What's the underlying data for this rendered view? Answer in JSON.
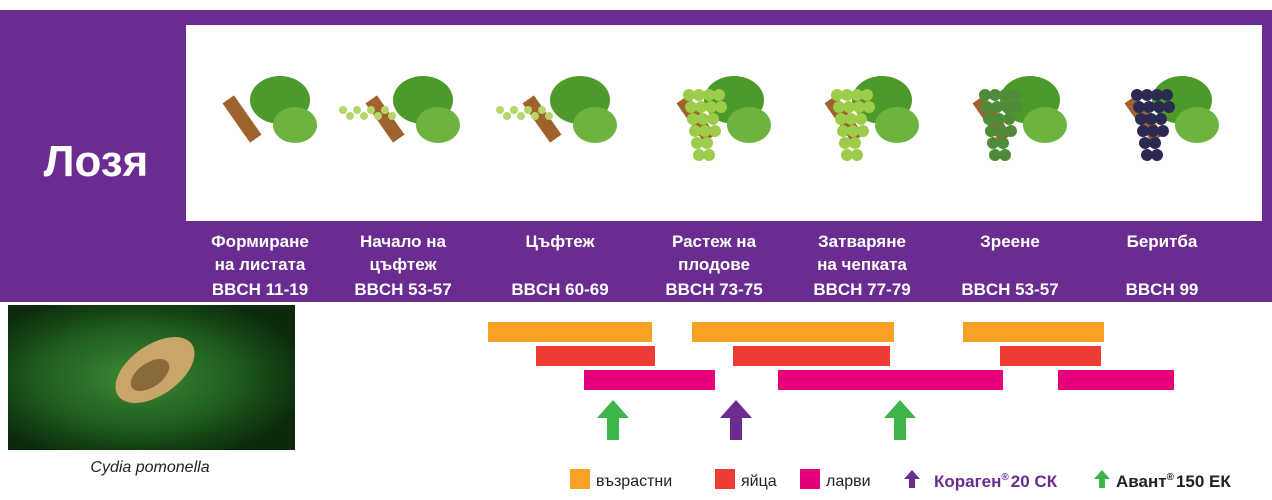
{
  "title": "Лозя",
  "stages": [
    {
      "name": [
        "Формиране",
        "на листата"
      ],
      "code": "BBCH 11-19"
    },
    {
      "name": [
        "Начало на",
        "цъфтеж"
      ],
      "code": "BBCH 53-57"
    },
    {
      "name": [
        "Цъфтеж"
      ],
      "code": "BBCH 60-69"
    },
    {
      "name": [
        "Растеж на",
        "плодове"
      ],
      "code": "BBCH 73-75"
    },
    {
      "name": [
        "Затваряне",
        "на чепката"
      ],
      "code": "BBCH 77-79"
    },
    {
      "name": [
        "Зреене"
      ],
      "code": "BBCH 53-57"
    },
    {
      "name": [
        "Беритба"
      ],
      "code": "BBCH 99"
    }
  ],
  "pest": "Cydia pomonella",
  "legend": {
    "adults": "възрастни",
    "eggs": "яйца",
    "larvae": "ларви",
    "product1": {
      "name": "Кораген",
      "mark": "®",
      "suffix": "20 СК"
    },
    "product2": {
      "name": "Авант",
      "mark": "®",
      "suffix": "150 ЕК"
    }
  }
}
